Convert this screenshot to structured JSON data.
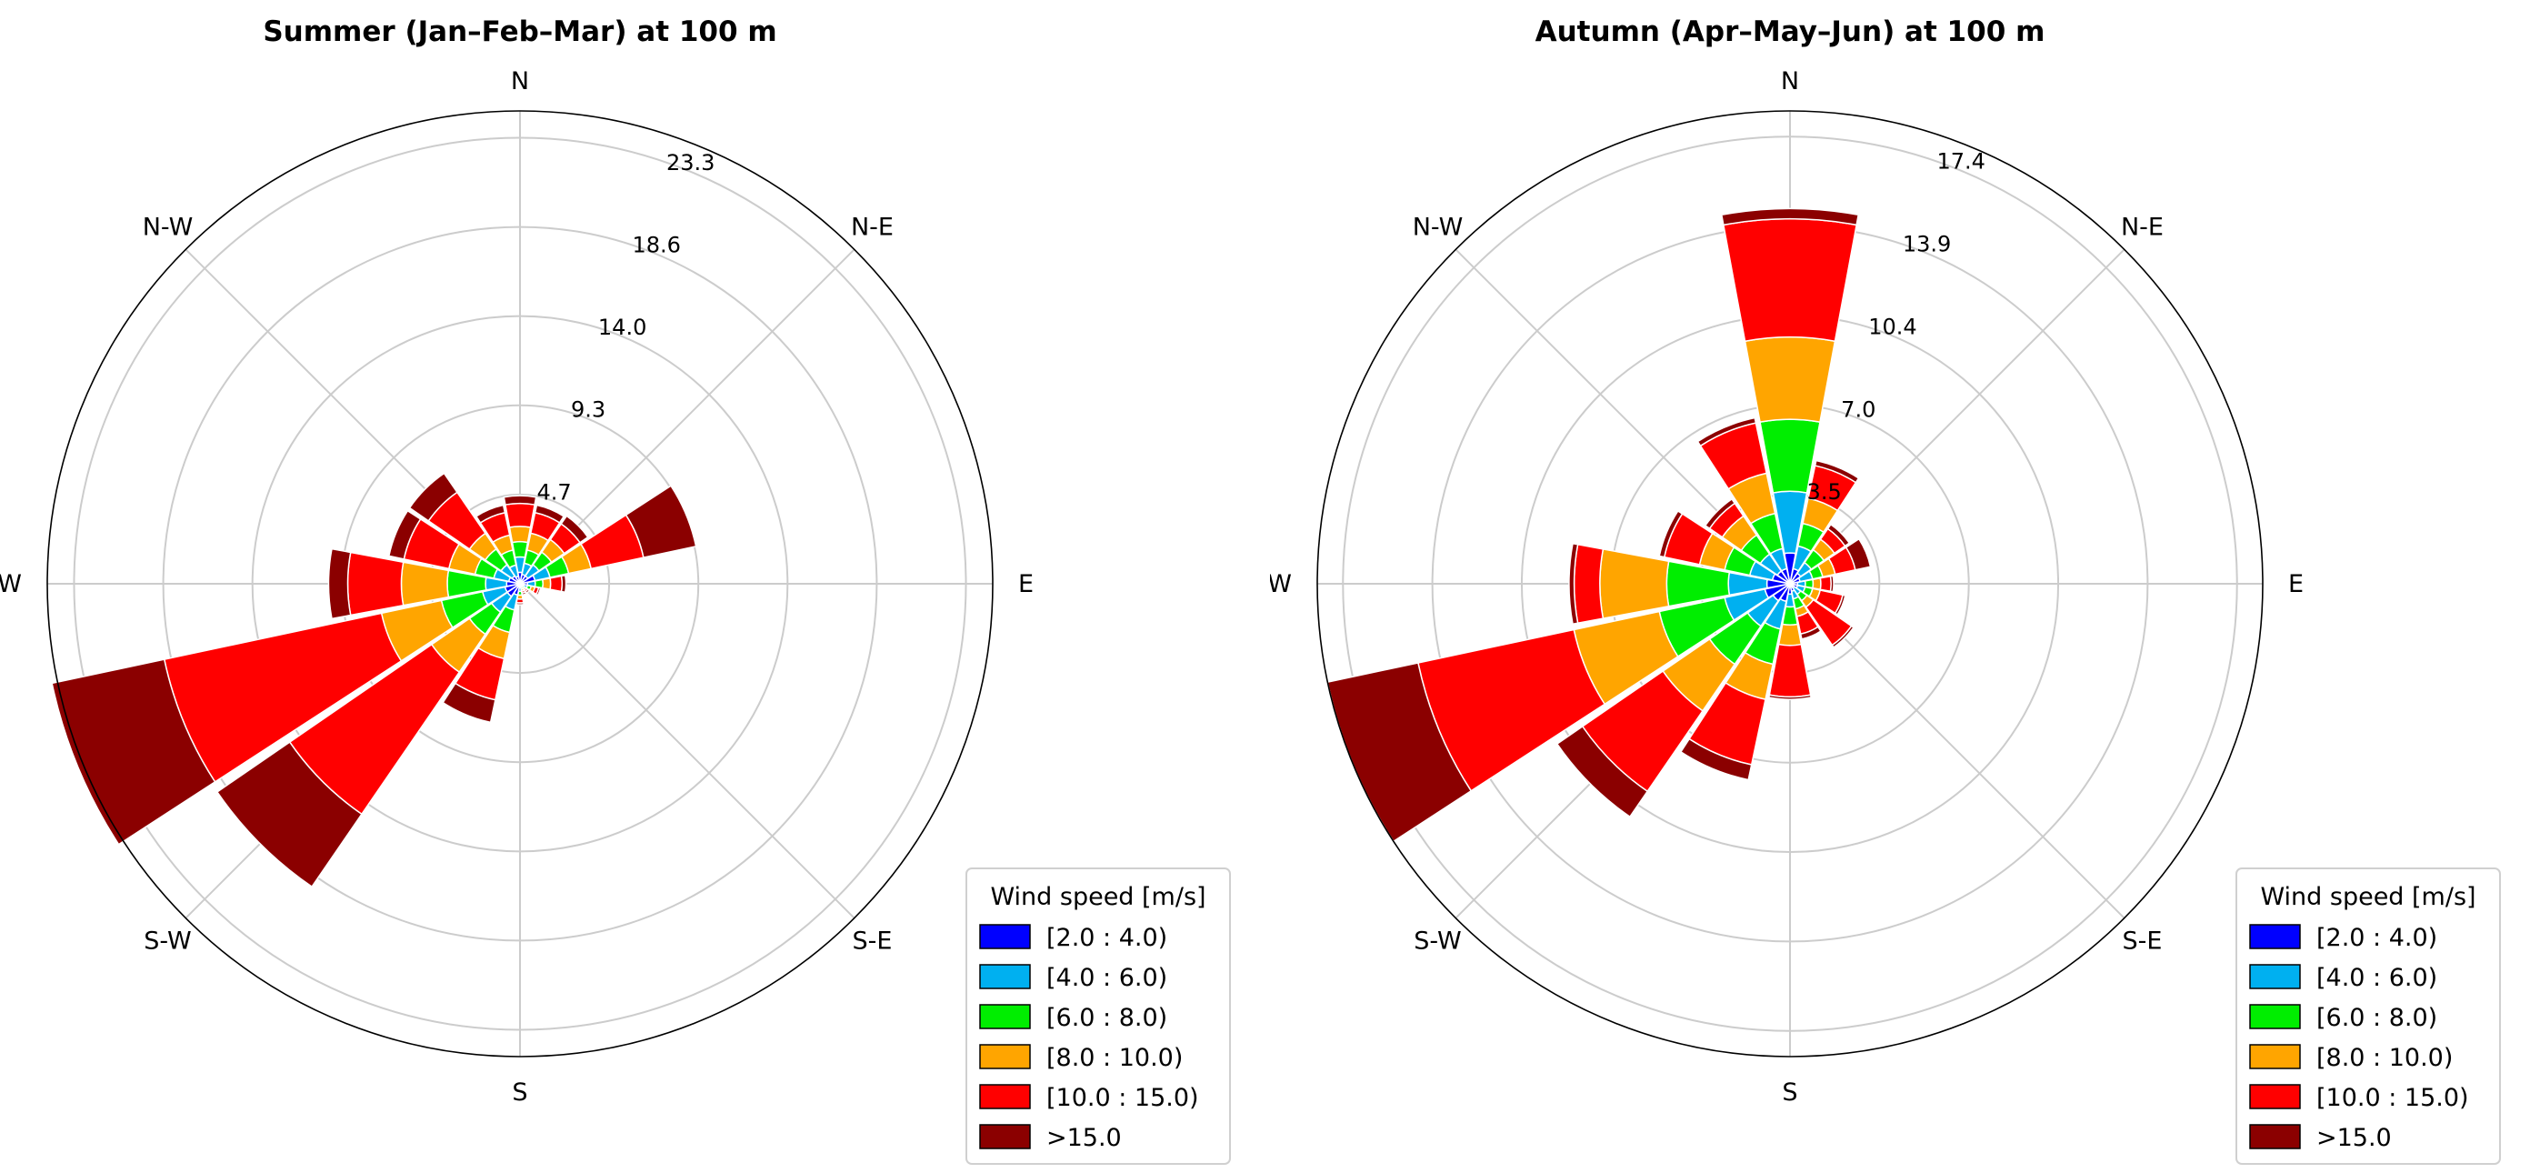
{
  "direction_labels": [
    "N",
    "N-E",
    "E",
    "S-E",
    "S",
    "S-W",
    "W",
    "N-W"
  ],
  "legend": {
    "title": "Wind speed [m/s]",
    "bins": [
      "[2.0 : 4.0)",
      "[4.0 : 6.0)",
      "[6.0 : 8.0)",
      "[8.0 : 10.0)",
      "[10.0 : 15.0)",
      ">15.0"
    ],
    "colors": [
      "#0000ff",
      "#00b0f0",
      "#00ee00",
      "#ffa500",
      "#ff0000",
      "#8b0000"
    ]
  },
  "chart_data": [
    {
      "type": "windrose",
      "title": "Summer (Jan–Feb–Mar) at 100 m",
      "rmax": 24.7,
      "radial_ticks": [
        "4.7",
        "9.3",
        "14.0",
        "18.6",
        "23.3"
      ],
      "radial_tick_values": [
        4.66,
        9.32,
        13.98,
        18.64,
        23.3
      ],
      "directions_deg": [
        0,
        22.5,
        45,
        67.5,
        90,
        112.5,
        135,
        157.5,
        180,
        202.5,
        225,
        247.5,
        270,
        292.5,
        315,
        337.5
      ],
      "cumulative_frequencies": [
        [
          0.6,
          1.4,
          2.2,
          3.0,
          4.2,
          4.6
        ],
        [
          0.5,
          1.1,
          1.8,
          2.7,
          3.8,
          4.2
        ],
        [
          0.5,
          1.2,
          2.0,
          2.8,
          3.8,
          4.3
        ],
        [
          0.8,
          1.6,
          2.6,
          3.8,
          6.6,
          9.4
        ],
        [
          0.4,
          0.8,
          1.2,
          1.6,
          2.2,
          2.4
        ],
        [
          0.2,
          0.4,
          0.6,
          0.8,
          1.0,
          1.1
        ],
        [
          0.1,
          0.2,
          0.3,
          0.4,
          0.5,
          0.6
        ],
        [
          0.1,
          0.2,
          0.3,
          0.4,
          0.5,
          0.6
        ],
        [
          0.2,
          0.4,
          0.6,
          0.8,
          1.0,
          1.1
        ],
        [
          0.6,
          1.4,
          2.6,
          4.0,
          6.2,
          7.4
        ],
        [
          0.8,
          1.8,
          3.2,
          5.6,
          14.6,
          19.2
        ],
        [
          0.8,
          2.0,
          4.2,
          7.4,
          19.0,
          25.0
        ],
        [
          0.7,
          1.8,
          3.8,
          6.2,
          9.0,
          10.0
        ],
        [
          0.6,
          1.4,
          2.4,
          3.8,
          6.2,
          7.0
        ],
        [
          0.5,
          1.2,
          2.2,
          3.2,
          5.8,
          7.0
        ],
        [
          0.4,
          1.0,
          1.8,
          2.6,
          3.8,
          4.2
        ]
      ]
    },
    {
      "type": "windrose",
      "title": "Autumn (Apr–May–Jun) at 100 m",
      "rmax": 18.4,
      "radial_ticks": [
        "3.5",
        "7.0",
        "10.4",
        "13.9",
        "17.4"
      ],
      "radial_tick_values": [
        3.48,
        6.96,
        10.44,
        13.92,
        17.4
      ],
      "directions_deg": [
        0,
        22.5,
        45,
        67.5,
        90,
        112.5,
        135,
        157.5,
        180,
        202.5,
        225,
        247.5,
        270,
        292.5,
        315,
        337.5
      ],
      "cumulative_frequencies": [
        [
          1.2,
          3.6,
          6.4,
          9.6,
          14.2,
          14.6
        ],
        [
          0.6,
          1.5,
          2.4,
          3.4,
          4.7,
          4.9
        ],
        [
          0.5,
          1.0,
          1.6,
          2.1,
          2.6,
          2.8
        ],
        [
          0.4,
          0.9,
          1.3,
          1.8,
          2.6,
          3.2
        ],
        [
          0.3,
          0.6,
          0.9,
          1.2,
          1.6,
          1.7
        ],
        [
          0.3,
          0.6,
          0.9,
          1.2,
          2.1,
          2.2
        ],
        [
          0.2,
          0.5,
          0.8,
          1.1,
          2.9,
          3.0
        ],
        [
          0.3,
          0.6,
          1.0,
          1.3,
          2.0,
          2.2
        ],
        [
          0.4,
          0.9,
          1.6,
          2.4,
          4.4,
          4.5
        ],
        [
          0.7,
          1.8,
          3.2,
          4.6,
          7.2,
          7.8
        ],
        [
          0.8,
          2.0,
          3.8,
          6.0,
          9.8,
          11.0
        ],
        [
          1.0,
          2.6,
          5.2,
          8.6,
          14.8,
          18.4
        ],
        [
          0.9,
          2.4,
          4.8,
          7.4,
          8.4,
          8.6
        ],
        [
          0.7,
          1.6,
          2.6,
          3.6,
          5.0,
          5.2
        ],
        [
          0.6,
          1.4,
          2.3,
          3.2,
          3.8,
          4.0
        ],
        [
          0.6,
          1.4,
          2.8,
          4.4,
          6.4,
          6.6
        ]
      ]
    }
  ]
}
